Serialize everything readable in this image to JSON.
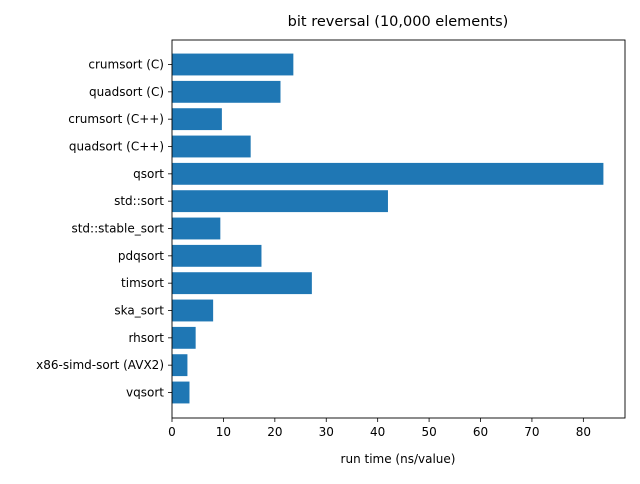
{
  "chart_data": {
    "type": "bar",
    "orientation": "horizontal",
    "title": "bit reversal (10,000 elements)",
    "xlabel": "run time (ns/value)",
    "ylabel": "",
    "categories": [
      "crumsort (C)",
      "quadsort (C)",
      "crumsort (C++)",
      "quadsort (C++)",
      "qsort",
      "std::sort",
      "std::stable_sort",
      "pdqsort",
      "timsort",
      "ska_sort",
      "rhsort",
      "x86-simd-sort (AVX2)",
      "vqsort"
    ],
    "values": [
      23.6,
      21.1,
      9.7,
      15.3,
      83.9,
      42.0,
      9.4,
      17.4,
      27.2,
      8.0,
      4.6,
      3.0,
      3.4
    ],
    "xlim": [
      0,
      88.1
    ],
    "xticks": [
      0,
      10,
      20,
      30,
      40,
      50,
      60,
      70,
      80
    ],
    "bar_color": "#1f77b4",
    "grid": false,
    "legend": "none"
  }
}
